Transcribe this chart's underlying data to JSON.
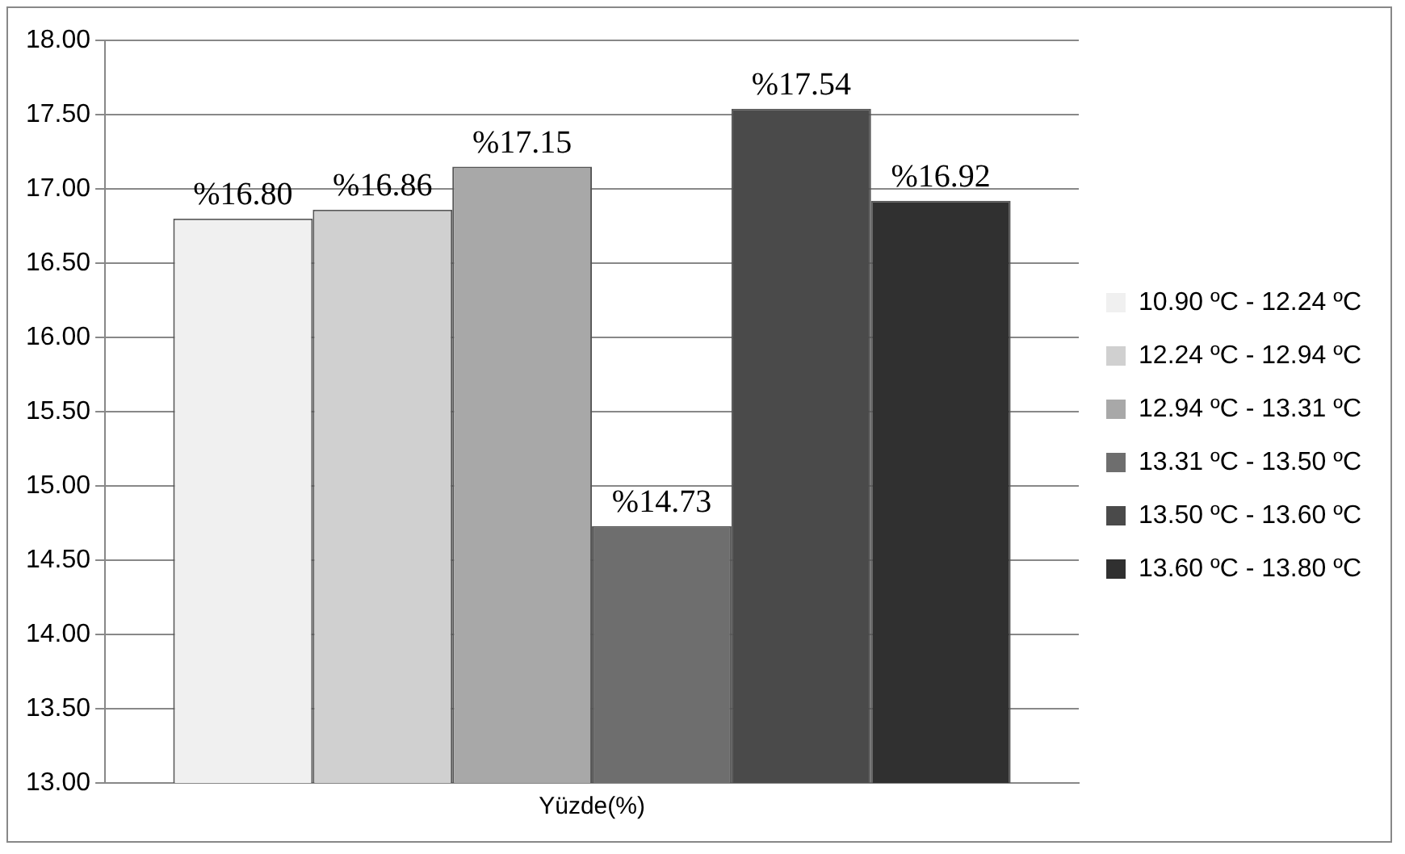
{
  "chart_data": {
    "type": "bar",
    "categories": [
      "Yüzde(%)"
    ],
    "series": [
      {
        "name": "10.90 ºC - 12.24 ºC",
        "color": "#f0f0f0",
        "values": [
          16.8
        ],
        "value_labels": [
          "%16.80"
        ]
      },
      {
        "name": "12.24 ºC - 12.94 ºC",
        "color": "#d0d0d0",
        "values": [
          16.86
        ],
        "value_labels": [
          "%16.86"
        ]
      },
      {
        "name": "12.94 ºC - 13.31 ºC",
        "color": "#a8a8a8",
        "values": [
          17.15
        ],
        "value_labels": [
          "%17.15"
        ]
      },
      {
        "name": "13.31 ºC - 13.50 ºC",
        "color": "#6e6e6e",
        "values": [
          14.73
        ],
        "value_labels": [
          "%14.73"
        ]
      },
      {
        "name": "13.50 ºC - 13.60 ºC",
        "color": "#4a4a4a",
        "values": [
          17.54
        ],
        "value_labels": [
          "%17.54"
        ]
      },
      {
        "name": "13.60 ºC - 13.80 ºC",
        "color": "#303030",
        "values": [
          16.92
        ],
        "value_labels": [
          "%16.92"
        ]
      }
    ],
    "ylim": [
      13,
      18
    ],
    "yticks": [
      {
        "value": 13,
        "label": "13.00"
      },
      {
        "value": 13.5,
        "label": "13.50"
      },
      {
        "value": 14,
        "label": "14.00"
      },
      {
        "value": 14.5,
        "label": "14.50"
      },
      {
        "value": 15,
        "label": "15.00"
      },
      {
        "value": 15.5,
        "label": "15.50"
      },
      {
        "value": 16,
        "label": "16.00"
      },
      {
        "value": 16.5,
        "label": "16.50"
      },
      {
        "value": 17,
        "label": "17.00"
      },
      {
        "value": 17.5,
        "label": "17.50"
      },
      {
        "value": 18,
        "label": "18.00"
      }
    ],
    "grid": "y",
    "legend": "right"
  }
}
